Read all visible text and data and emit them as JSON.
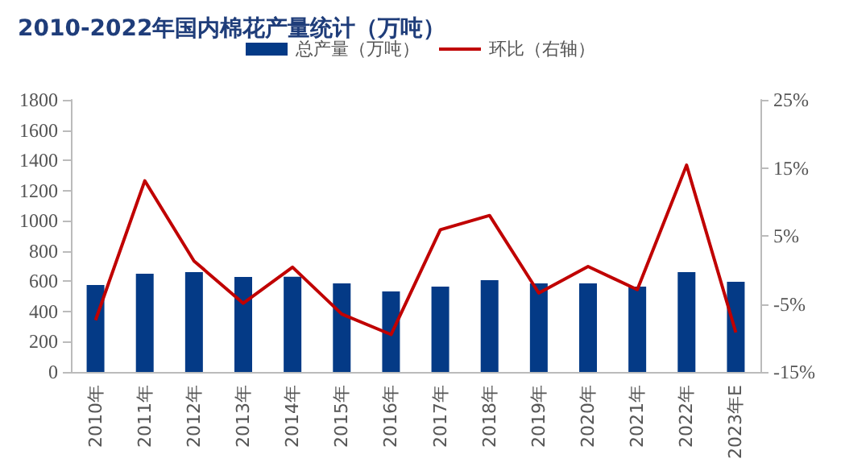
{
  "chart_data": {
    "type": "bar",
    "title": "2010-2022年国内棉花产量统计（万吨）",
    "categories": [
      "2010年",
      "2011年",
      "2012年",
      "2013年",
      "2014年",
      "2015年",
      "2016年",
      "2017年",
      "2018年",
      "2019年",
      "2020年",
      "2021年",
      "2022年",
      "2023年E"
    ],
    "series": [
      {
        "name": "总产量（万吨）",
        "color": "#043a86",
        "values": [
          575,
          650,
          660,
          628,
          630,
          586,
          533,
          565,
          607,
          586,
          586,
          565,
          660,
          597
        ]
      },
      {
        "name": "环比（右轴）",
        "type": "line",
        "axis": "y2",
        "color": "#c00000",
        "values": [
          -7.4,
          13.1,
          1.3,
          -4.9,
          0.4,
          -6.5,
          -9.5,
          5.9,
          8.0,
          -3.4,
          0.5,
          -2.9,
          15.4,
          -9.2
        ]
      }
    ],
    "ylim": [
      0,
      1800
    ],
    "yticks": [
      0,
      200,
      400,
      600,
      800,
      1000,
      1200,
      1400,
      1600,
      1800
    ],
    "y2lim": [
      -15,
      25
    ],
    "y2ticks": [
      {
        "value": -15,
        "label": "-15%"
      },
      {
        "value": -5,
        "label": "-5%"
      },
      {
        "value": 5,
        "label": "5%"
      },
      {
        "value": 15,
        "label": "15%"
      },
      {
        "value": 25,
        "label": "25%"
      }
    ],
    "legend": "top",
    "grid": false,
    "marker": "none"
  }
}
